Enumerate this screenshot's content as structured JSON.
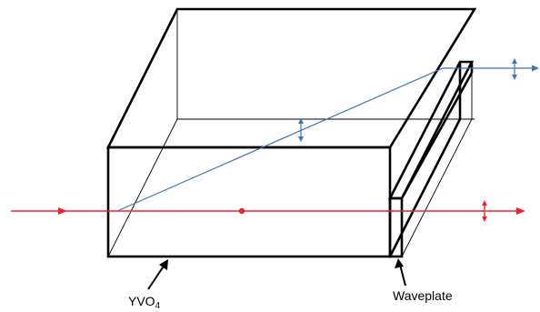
{
  "labels": {
    "crystal": {
      "main": "YVO",
      "subscript": "4"
    },
    "waveplate": "Waveplate"
  },
  "colors": {
    "outline": "#000000",
    "hidden_edge": "#000000",
    "ordinary_beam": "#e8262a",
    "extraordinary_beam": "#3f74b0",
    "background": "#ffffff"
  },
  "icons": {
    "vertical_polarization": "double-headed-vertical-arrow",
    "horizontal_polarization_into_page": "dot"
  }
}
